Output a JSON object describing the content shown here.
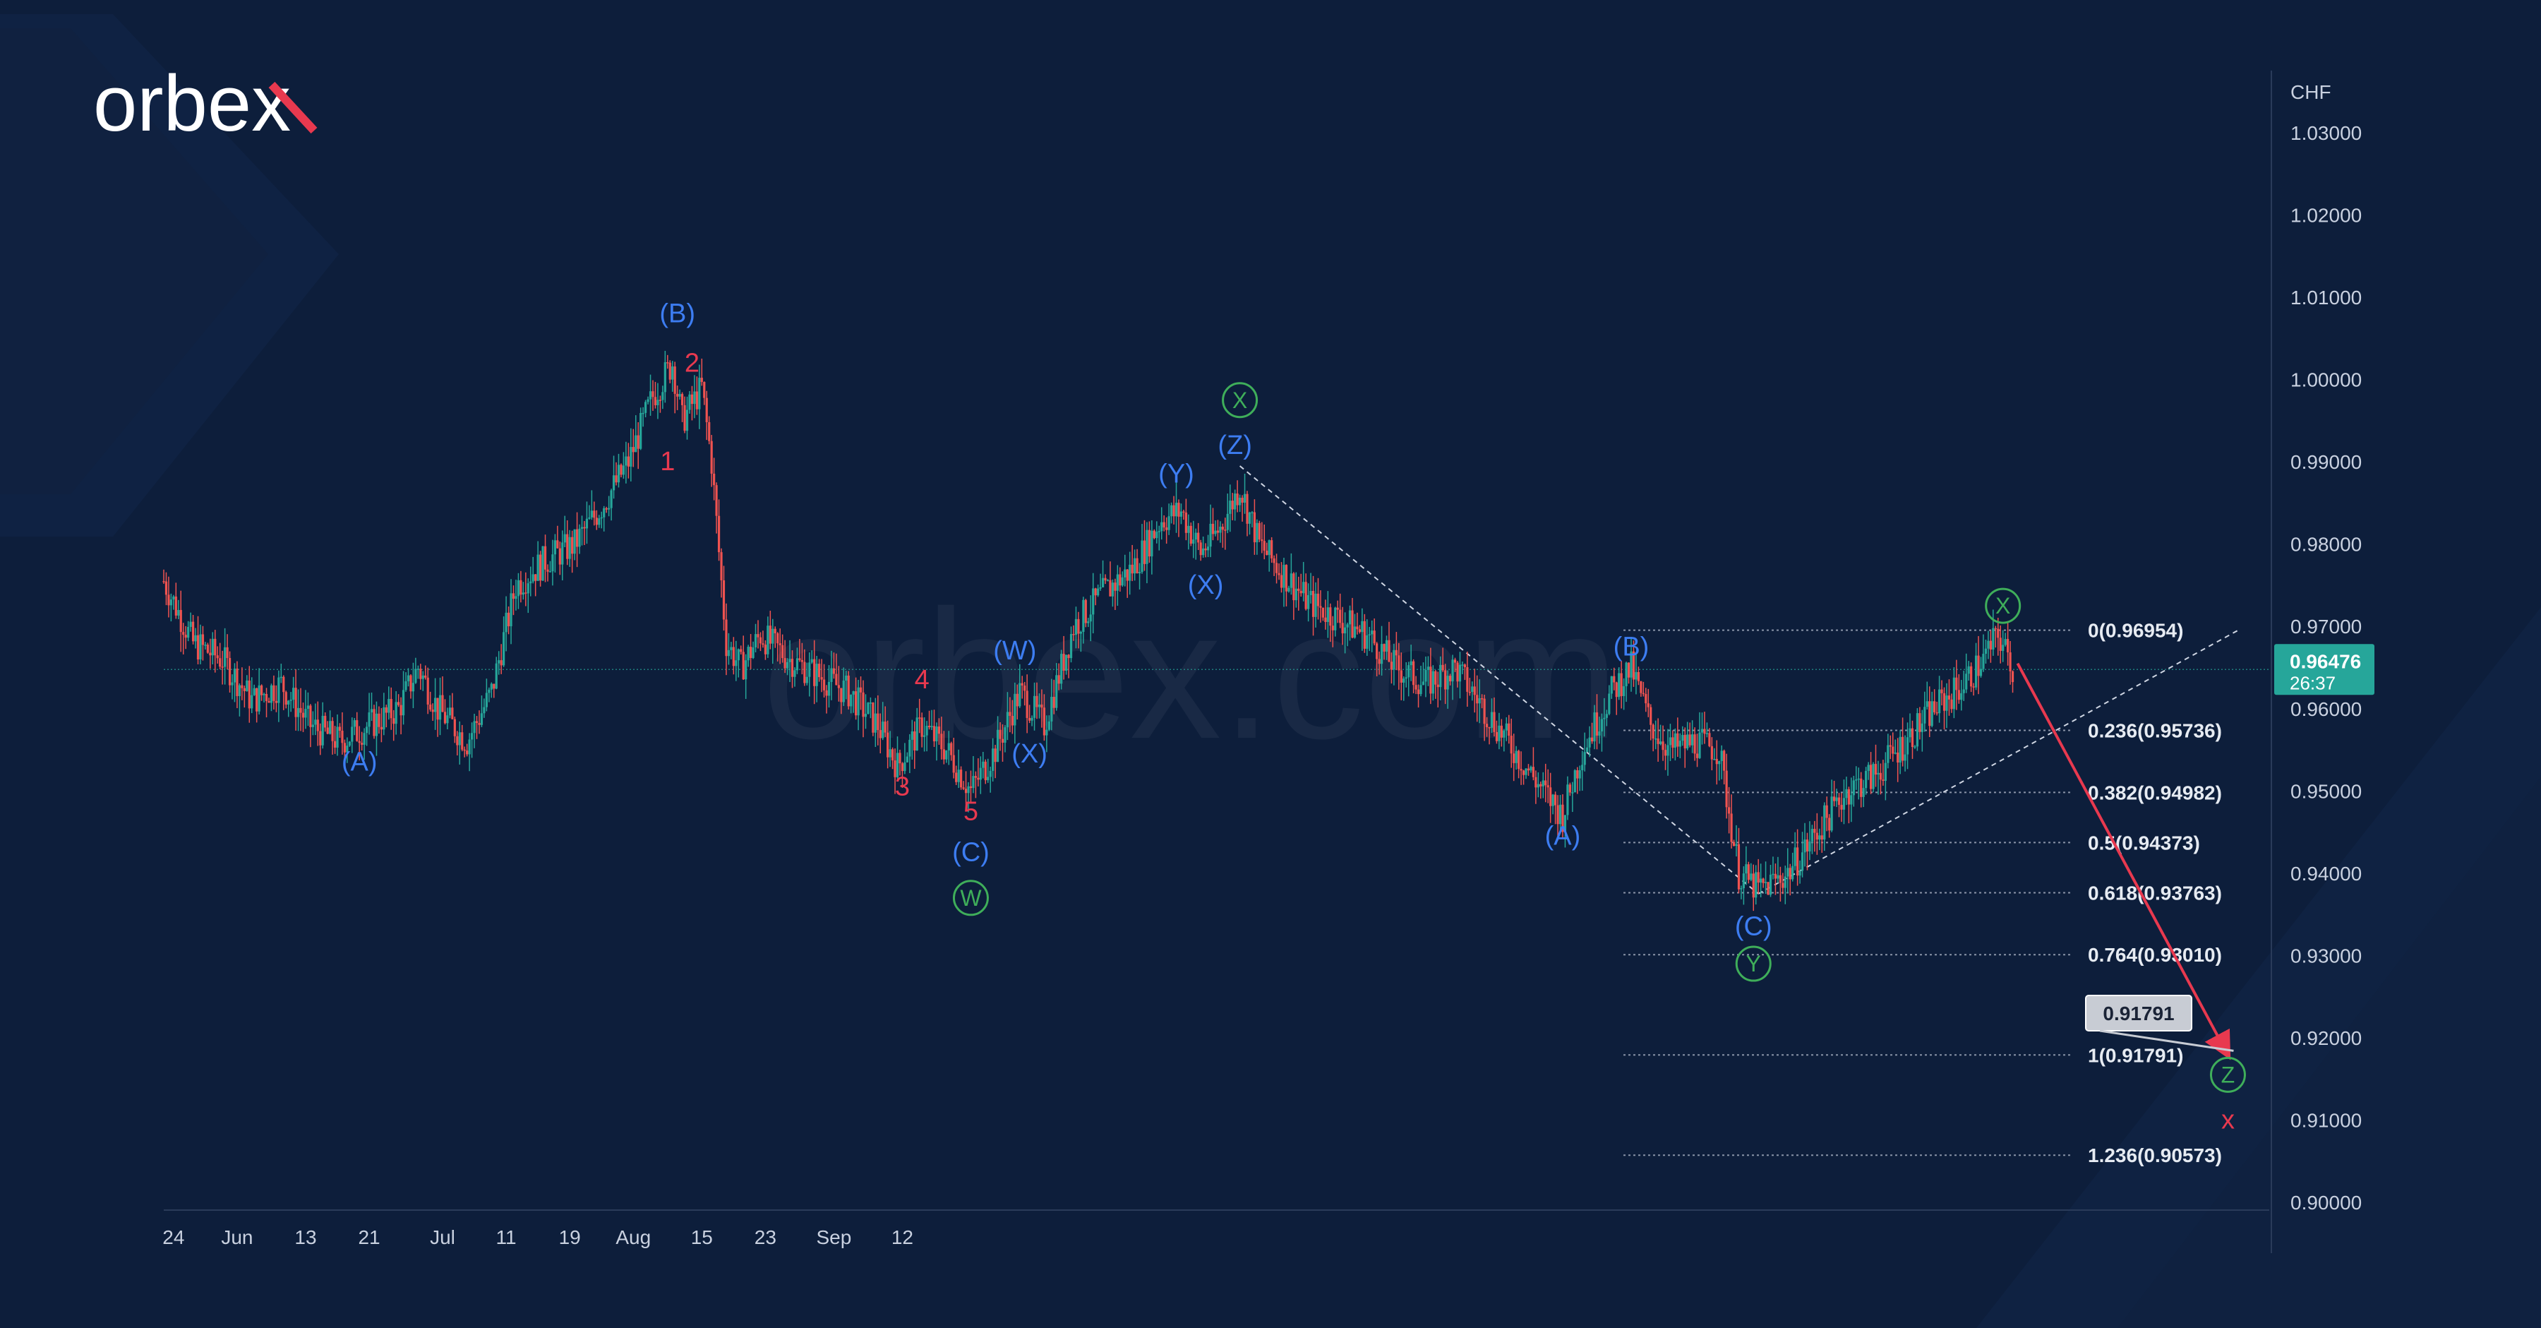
{
  "brand": {
    "logo_text": "orbex",
    "watermark": "orbex.com"
  },
  "chart_data": {
    "type": "candlestick",
    "instrument_currency": "CHF",
    "y_range": [
      0.9,
      1.03
    ],
    "y_tick_labels": [
      "1.03000",
      "1.02000",
      "1.01000",
      "1.00000",
      "0.99000",
      "0.98000",
      "0.97000",
      "0.96000",
      "0.95000",
      "0.94000",
      "0.93000",
      "0.92000",
      "0.91000",
      "0.90000"
    ],
    "x_tick_labels": [
      "24",
      "Jun",
      "13",
      "21",
      "Jul",
      "11",
      "19",
      "Aug",
      "15",
      "23",
      "Sep",
      "12"
    ],
    "current_price": {
      "value": "0.96476",
      "countdown": "26:37"
    },
    "target_label": "0.91791",
    "fib_levels": [
      {
        "label": "0(0.96954)",
        "value": 0.96954
      },
      {
        "label": "0.236(0.95736)",
        "value": 0.95736
      },
      {
        "label": "0.382(0.94982)",
        "value": 0.94982
      },
      {
        "label": "0.5(0.94373)",
        "value": 0.94373
      },
      {
        "label": "0.618(0.93763)",
        "value": 0.93763
      },
      {
        "label": "0.764(0.93010)",
        "value": 0.9301
      },
      {
        "label": "1(0.91791)",
        "value": 0.91791
      },
      {
        "label": "1.236(0.90573)",
        "value": 0.90573
      }
    ],
    "price_path": [
      [
        0,
        0.9755
      ],
      [
        6,
        0.968
      ],
      [
        12,
        0.966
      ],
      [
        18,
        0.961
      ],
      [
        24,
        0.963
      ],
      [
        30,
        0.958
      ],
      [
        36,
        0.956
      ],
      [
        42,
        0.958
      ],
      [
        48,
        0.96
      ],
      [
        52,
        0.965
      ],
      [
        56,
        0.96
      ],
      [
        62,
        0.956
      ],
      [
        67,
        0.962
      ],
      [
        72,
        0.975
      ],
      [
        78,
        0.978
      ],
      [
        84,
        0.98
      ],
      [
        90,
        0.985
      ],
      [
        95,
        0.99
      ],
      [
        100,
        0.998
      ],
      [
        104,
        1.002
      ],
      [
        106,
        0.995
      ],
      [
        110,
        0.999
      ],
      [
        112,
        0.99
      ],
      [
        115,
        0.968
      ],
      [
        118,
        0.965
      ],
      [
        122,
        0.969
      ],
      [
        128,
        0.966
      ],
      [
        134,
        0.964
      ],
      [
        140,
        0.962
      ],
      [
        146,
        0.958
      ],
      [
        150,
        0.953
      ],
      [
        155,
        0.958
      ],
      [
        160,
        0.955
      ],
      [
        165,
        0.95
      ],
      [
        170,
        0.955
      ],
      [
        175,
        0.962
      ],
      [
        180,
        0.958
      ],
      [
        186,
        0.97
      ],
      [
        192,
        0.974
      ],
      [
        198,
        0.977
      ],
      [
        204,
        0.983
      ],
      [
        208,
        0.984
      ],
      [
        212,
        0.979
      ],
      [
        216,
        0.982
      ],
      [
        220,
        0.987
      ],
      [
        224,
        0.98
      ],
      [
        228,
        0.977
      ],
      [
        234,
        0.973
      ],
      [
        240,
        0.971
      ],
      [
        246,
        0.969
      ],
      [
        252,
        0.965
      ],
      [
        258,
        0.963
      ],
      [
        264,
        0.965
      ],
      [
        270,
        0.96
      ],
      [
        276,
        0.955
      ],
      [
        282,
        0.95
      ],
      [
        286,
        0.947
      ],
      [
        290,
        0.955
      ],
      [
        296,
        0.962
      ],
      [
        300,
        0.965
      ],
      [
        304,
        0.958
      ],
      [
        308,
        0.955
      ],
      [
        313,
        0.956
      ],
      [
        318,
        0.955
      ],
      [
        322,
        0.94
      ],
      [
        326,
        0.938
      ],
      [
        332,
        0.94
      ],
      [
        338,
        0.945
      ],
      [
        344,
        0.95
      ],
      [
        350,
        0.952
      ],
      [
        356,
        0.956
      ],
      [
        362,
        0.96
      ],
      [
        368,
        0.963
      ],
      [
        372,
        0.966
      ],
      [
        375,
        0.969
      ],
      [
        378,
        0.965
      ]
    ],
    "annotations": [
      {
        "text": "(A)",
        "color": "blue",
        "x": 40,
        "y": 0.9535
      },
      {
        "text": "(B)",
        "color": "blue",
        "x": 105,
        "y": 1.008
      },
      {
        "text": "1",
        "color": "red",
        "x": 103,
        "y": 0.99
      },
      {
        "text": "2",
        "color": "red",
        "x": 108,
        "y": 1.002
      },
      {
        "text": "4",
        "color": "red",
        "x": 155,
        "y": 0.9635
      },
      {
        "text": "3",
        "color": "red",
        "x": 151,
        "y": 0.9505
      },
      {
        "text": "5",
        "color": "red",
        "x": 165,
        "y": 0.9475
      },
      {
        "text": "(C)",
        "color": "blue",
        "x": 165,
        "y": 0.9425
      },
      {
        "text": "W",
        "color": "green",
        "circled": true,
        "x": 165,
        "y": 0.937
      },
      {
        "text": "(W)",
        "color": "blue",
        "x": 174,
        "y": 0.967
      },
      {
        "text": "(X)",
        "color": "blue",
        "x": 177,
        "y": 0.9545
      },
      {
        "text": "(Y)",
        "color": "blue",
        "x": 207,
        "y": 0.9885
      },
      {
        "text": "(X)",
        "color": "blue",
        "x": 213,
        "y": 0.975
      },
      {
        "text": "(Z)",
        "color": "blue",
        "x": 219,
        "y": 0.992
      },
      {
        "text": "X",
        "color": "green",
        "circled": true,
        "x": 220,
        "y": 0.9975
      },
      {
        "text": "(B)",
        "color": "blue",
        "x": 300,
        "y": 0.9675
      },
      {
        "text": "(A)",
        "color": "blue",
        "x": 286,
        "y": 0.9445
      },
      {
        "text": "(C)",
        "color": "blue",
        "x": 325,
        "y": 0.9335
      },
      {
        "text": "Y",
        "color": "green",
        "circled": true,
        "x": 325,
        "y": 0.929
      },
      {
        "text": "X",
        "color": "green",
        "circled": true,
        "x": 376,
        "y": 0.9725
      },
      {
        "text": "Z",
        "color": "green",
        "circled": true,
        "x": 422,
        "y": 0.9155
      },
      {
        "text": "x",
        "color": "red",
        "x": 422,
        "y": 0.91
      }
    ],
    "trendlines": [
      {
        "style": "dashed",
        "from": [
          220,
          0.9895
        ],
        "to": [
          326,
          0.9375
        ]
      },
      {
        "style": "dashed",
        "from": [
          326,
          0.9375
        ],
        "to": [
          424,
          0.9695
        ]
      },
      {
        "style": "arrow",
        "color": "red",
        "from": [
          379,
          0.9655
        ],
        "to": [
          422,
          0.9179
        ]
      }
    ]
  }
}
